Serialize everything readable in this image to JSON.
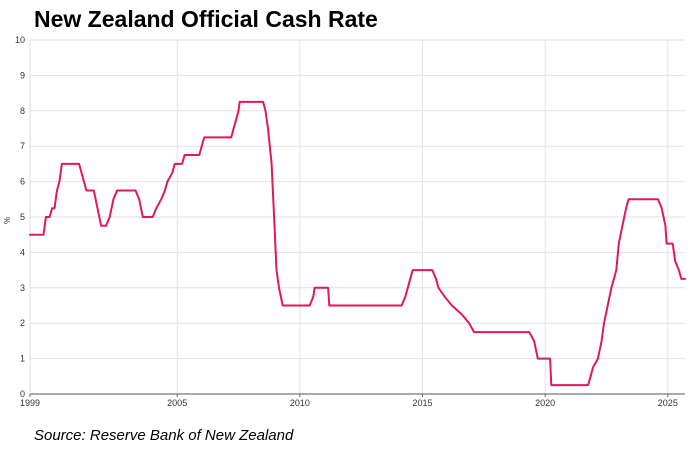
{
  "header": {
    "title": "New Zealand Official Cash Rate"
  },
  "footer": {
    "source": "Source: Reserve Bank of New Zealand"
  },
  "chart_data": {
    "type": "line",
    "title": "New Zealand Official Cash Rate",
    "xlabel": "",
    "ylabel": "%",
    "xlim": [
      1999,
      2025.7
    ],
    "ylim": [
      0,
      10
    ],
    "grid": true,
    "line_color": "#e0195e",
    "x_ticks": [
      1999,
      2005,
      2010,
      2015,
      2020,
      2025
    ],
    "x_tick_labels": [
      "1999",
      "2005",
      "2010",
      "2015",
      "2020",
      "2025"
    ],
    "y_ticks": [
      0,
      1,
      2,
      3,
      4,
      5,
      6,
      7,
      8,
      9,
      10
    ],
    "y_tick_labels": [
      "0",
      "1",
      "2",
      "3",
      "4",
      "5",
      "6",
      "7",
      "8",
      "9",
      "10"
    ],
    "series": [
      {
        "name": "Official Cash Rate",
        "points": [
          [
            1999.0,
            4.5
          ],
          [
            1999.55,
            4.5
          ],
          [
            1999.65,
            5.0
          ],
          [
            1999.8,
            5.0
          ],
          [
            1999.9,
            5.25
          ],
          [
            2000.0,
            5.25
          ],
          [
            2000.1,
            5.75
          ],
          [
            2000.2,
            6.0
          ],
          [
            2000.3,
            6.5
          ],
          [
            2001.0,
            6.5
          ],
          [
            2001.3,
            5.75
          ],
          [
            2001.6,
            5.75
          ],
          [
            2001.75,
            5.25
          ],
          [
            2001.9,
            4.75
          ],
          [
            2002.1,
            4.75
          ],
          [
            2002.25,
            5.0
          ],
          [
            2002.4,
            5.5
          ],
          [
            2002.55,
            5.75
          ],
          [
            2003.3,
            5.75
          ],
          [
            2003.45,
            5.5
          ],
          [
            2003.6,
            5.0
          ],
          [
            2004.0,
            5.0
          ],
          [
            2004.15,
            5.25
          ],
          [
            2004.35,
            5.5
          ],
          [
            2004.5,
            5.75
          ],
          [
            2004.6,
            6.0
          ],
          [
            2004.8,
            6.25
          ],
          [
            2004.9,
            6.5
          ],
          [
            2005.2,
            6.5
          ],
          [
            2005.3,
            6.75
          ],
          [
            2005.9,
            6.75
          ],
          [
            2006.0,
            7.0
          ],
          [
            2006.1,
            7.25
          ],
          [
            2007.2,
            7.25
          ],
          [
            2007.3,
            7.5
          ],
          [
            2007.4,
            7.75
          ],
          [
            2007.5,
            8.0
          ],
          [
            2007.55,
            8.25
          ],
          [
            2008.5,
            8.25
          ],
          [
            2008.6,
            8.0
          ],
          [
            2008.7,
            7.5
          ],
          [
            2008.85,
            6.5
          ],
          [
            2008.95,
            5.0
          ],
          [
            2009.05,
            3.5
          ],
          [
            2009.15,
            3.0
          ],
          [
            2009.3,
            2.5
          ],
          [
            2010.4,
            2.5
          ],
          [
            2010.55,
            2.75
          ],
          [
            2010.6,
            3.0
          ],
          [
            2011.15,
            3.0
          ],
          [
            2011.2,
            2.5
          ],
          [
            2014.15,
            2.5
          ],
          [
            2014.3,
            2.75
          ],
          [
            2014.4,
            3.0
          ],
          [
            2014.5,
            3.25
          ],
          [
            2014.6,
            3.5
          ],
          [
            2015.4,
            3.5
          ],
          [
            2015.55,
            3.25
          ],
          [
            2015.65,
            3.0
          ],
          [
            2015.9,
            2.75
          ],
          [
            2016.2,
            2.5
          ],
          [
            2016.6,
            2.25
          ],
          [
            2016.9,
            2.0
          ],
          [
            2017.1,
            1.75
          ],
          [
            2019.35,
            1.75
          ],
          [
            2019.55,
            1.5
          ],
          [
            2019.7,
            1.0
          ],
          [
            2020.2,
            1.0
          ],
          [
            2020.25,
            0.25
          ],
          [
            2021.75,
            0.25
          ],
          [
            2021.85,
            0.5
          ],
          [
            2021.95,
            0.75
          ],
          [
            2022.15,
            1.0
          ],
          [
            2022.3,
            1.5
          ],
          [
            2022.4,
            2.0
          ],
          [
            2022.55,
            2.5
          ],
          [
            2022.7,
            3.0
          ],
          [
            2022.9,
            3.5
          ],
          [
            2023.0,
            4.25
          ],
          [
            2023.15,
            4.75
          ],
          [
            2023.3,
            5.25
          ],
          [
            2023.4,
            5.5
          ],
          [
            2024.6,
            5.5
          ],
          [
            2024.75,
            5.25
          ],
          [
            2024.9,
            4.75
          ],
          [
            2024.95,
            4.25
          ],
          [
            2025.2,
            4.25
          ],
          [
            2025.3,
            3.75
          ],
          [
            2025.45,
            3.5
          ],
          [
            2025.55,
            3.25
          ],
          [
            2025.7,
            3.25
          ]
        ]
      }
    ]
  }
}
